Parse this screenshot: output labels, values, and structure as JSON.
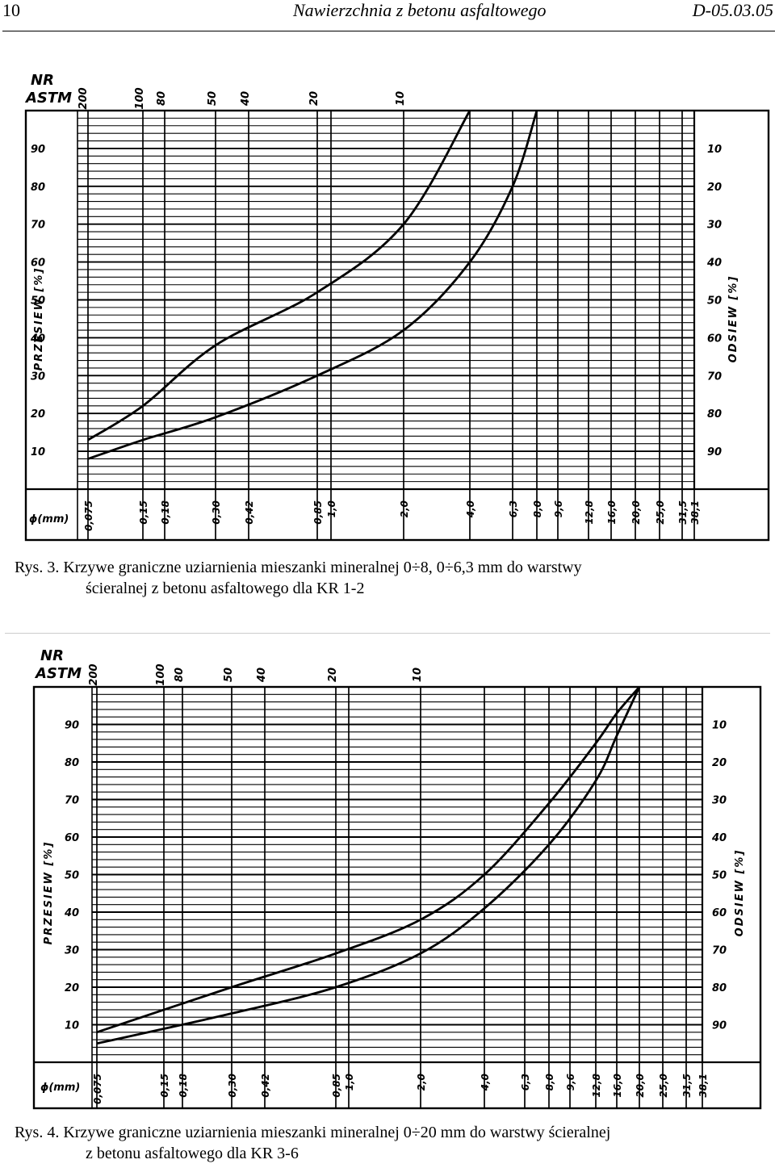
{
  "header": {
    "page_number": "10",
    "title": "Nawierzchnia z betonu asfaltowego",
    "code": "D-05.03.05"
  },
  "figures": [
    {
      "caption_line1": "Rys. 3. Krzywe graniczne uziarnienia mieszanki mineralnej 0÷8, 0÷6,3 mm do warstwy",
      "caption_line2": "ścieralnej z betonu asfaltowego dla KR 1-2"
    },
    {
      "caption_line1": "Rys. 4. Krzywe graniczne uziarnienia mieszanki mineralnej 0÷20 mm do warstwy ścieralnej",
      "caption_line2": "z betonu asfaltowego dla KR 3-6"
    }
  ],
  "chart_data": [
    {
      "type": "line",
      "title": "",
      "xlabel": "ɸ(mm)",
      "ylabel": "PRZESIEW [%]",
      "y2label": "ODSIEW [%]",
      "astm_label_line1": "NR",
      "astm_label_line2": "ASTM",
      "astm_ticks": [
        "200",
        "100",
        "80",
        "50",
        "40",
        "20",
        "10"
      ],
      "x_ticks": [
        "0,075",
        "0,15",
        "0,18",
        "0,30",
        "0,42",
        "0,85",
        "1,0",
        "2,0",
        "4,0",
        "6,3",
        "8,0",
        "9,6",
        "12,8",
        "16,0",
        "20,0",
        "25,0",
        "31,5",
        "38,1"
      ],
      "y_ticks": [
        "10",
        "20",
        "30",
        "40",
        "50",
        "60",
        "70",
        "80",
        "90"
      ],
      "y2_ticks": [
        "90",
        "80",
        "70",
        "60",
        "50",
        "40",
        "30",
        "20",
        "10"
      ],
      "ylim": [
        0,
        100
      ],
      "series": [
        {
          "x": [
            0.075,
            0.15,
            0.3,
            0.85,
            2.0,
            4.0
          ],
          "y": [
            13,
            22,
            38,
            52,
            70,
            100
          ]
        },
        {
          "x": [
            0.075,
            0.15,
            0.3,
            0.85,
            2.0,
            4.0,
            6.3,
            8.0
          ],
          "y": [
            8,
            13,
            19,
            30,
            42,
            60,
            80,
            100
          ]
        }
      ]
    },
    {
      "type": "line",
      "title": "",
      "xlabel": "ɸ(mm)",
      "ylabel": "PRZESIEW [%]",
      "y2label": "ODSIEW [%]",
      "astm_label_line1": "NR",
      "astm_label_line2": "ASTM",
      "astm_ticks": [
        "200",
        "100",
        "80",
        "50",
        "40",
        "20",
        "10"
      ],
      "x_ticks": [
        "0,075",
        "0,15",
        "0,18",
        "0,30",
        "0,42",
        "0,85",
        "1,0",
        "2,0",
        "4,0",
        "6,3",
        "8,0",
        "9,6",
        "12,8",
        "16,0",
        "20,0",
        "25,0",
        "31,5",
        "38,1"
      ],
      "y_ticks": [
        "10",
        "20",
        "30",
        "40",
        "50",
        "60",
        "70",
        "80",
        "90"
      ],
      "y2_ticks": [
        "90",
        "80",
        "70",
        "60",
        "50",
        "40",
        "30",
        "20",
        "10"
      ],
      "ylim": [
        0,
        100
      ],
      "series": [
        {
          "x": [
            0.075,
            0.3,
            0.85,
            2.0,
            4.0,
            8.0,
            12.8,
            16.0,
            20.0
          ],
          "y": [
            8,
            20,
            29,
            38,
            50,
            69,
            85,
            93,
            100
          ]
        },
        {
          "x": [
            0.075,
            0.3,
            0.85,
            2.0,
            4.0,
            8.0,
            12.8,
            16.0,
            20.0
          ],
          "y": [
            5,
            13,
            20,
            29,
            41,
            58,
            75,
            87,
            100
          ]
        }
      ]
    }
  ]
}
